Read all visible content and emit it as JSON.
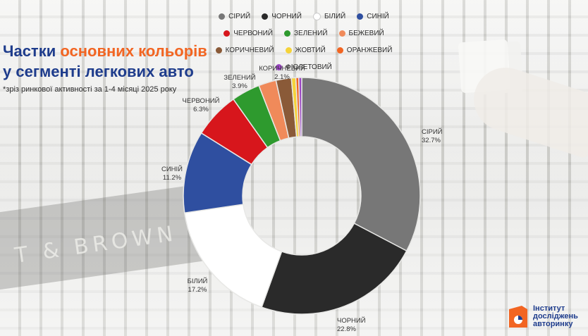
{
  "title": {
    "part1": "Частки",
    "accent": "основних кольорів",
    "line2": "у сегменті легкових авто"
  },
  "subtitle": "*зріз ринкової активності за 1-4 місяці 2025 року",
  "background_text": "T & BROWN",
  "logo": {
    "line1": "Інститут",
    "line2": "досліджень",
    "line3": "авторинку"
  },
  "chart_data": {
    "type": "pie",
    "donut": true,
    "legend_position": "top",
    "series": [
      {
        "name": "СІРИЙ",
        "value": 32.7,
        "label": "32.7%",
        "color": "#777777"
      },
      {
        "name": "ЧОРНИЙ",
        "value": 22.8,
        "label": "22.8%",
        "color": "#2a2a2a"
      },
      {
        "name": "БІЛИЙ",
        "value": 17.2,
        "label": "17.2%",
        "color": "#ffffff"
      },
      {
        "name": "СИНІЙ",
        "value": 11.2,
        "label": "11.2%",
        "color": "#2f4fa0"
      },
      {
        "name": "ЧЕРВОНИЙ",
        "value": 6.3,
        "label": "6.3%",
        "color": "#d7161c"
      },
      {
        "name": "ЗЕЛЕНИЙ",
        "value": 3.9,
        "label": "3.9%",
        "color": "#2e9a2e"
      },
      {
        "name": "БЕЖЕВИЙ",
        "value": 2.4,
        "label": "",
        "color": "#f08a5a"
      },
      {
        "name": "КОРИЧНЕВИЙ",
        "value": 2.1,
        "label": "2.1%",
        "color": "#8a5a38"
      },
      {
        "name": "ЖОВТИЙ",
        "value": 0.6,
        "label": "",
        "color": "#f5d33a"
      },
      {
        "name": "ОРАНЖЕВИЙ",
        "value": 0.4,
        "label": "",
        "color": "#f26522"
      },
      {
        "name": "ФІОЛЕТОВИЙ",
        "value": 0.4,
        "label": "",
        "color": "#9b45c4"
      }
    ]
  }
}
